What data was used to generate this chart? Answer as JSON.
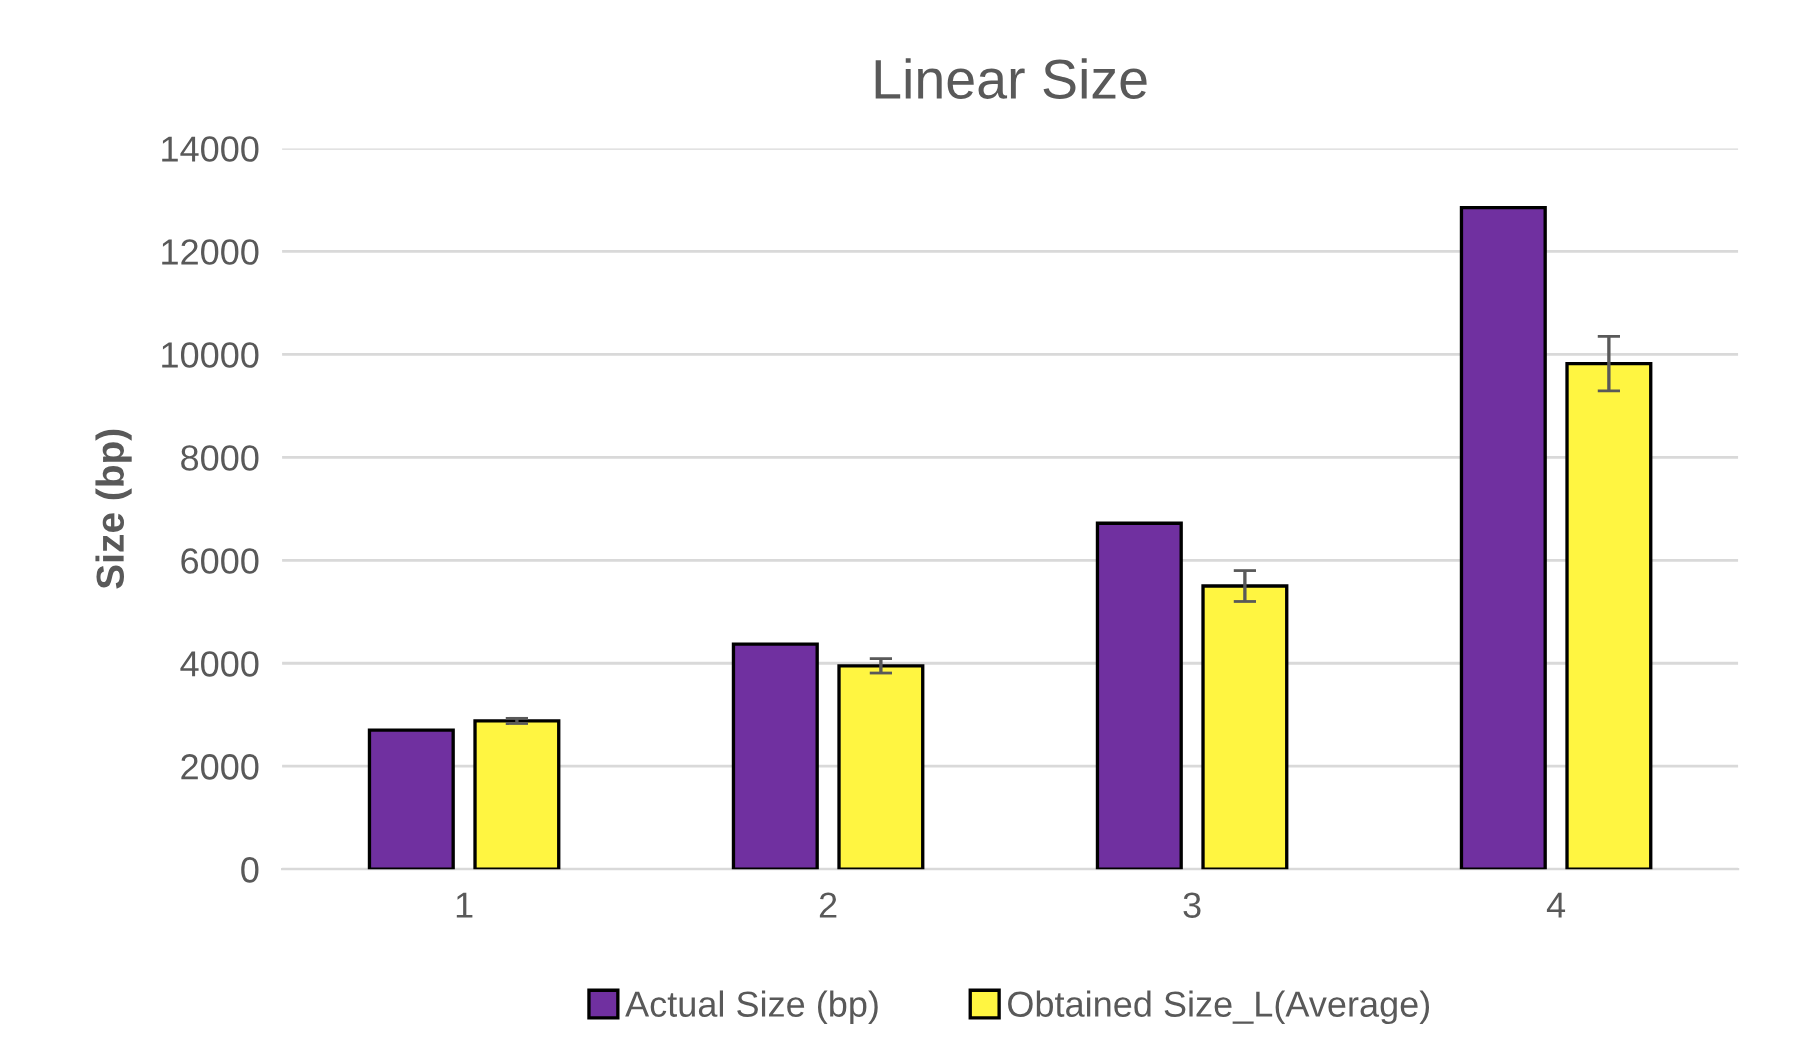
{
  "chart_data": {
    "type": "bar",
    "title": "Linear Size",
    "ylabel": "Size (bp)",
    "categories": [
      "1",
      "2",
      "3",
      "4"
    ],
    "series": [
      {
        "name": "Actual Size (bp)",
        "color": "#7030a0",
        "values": [
          2700,
          4370,
          6720,
          12850
        ]
      },
      {
        "name": "Obtained Size_L(Average)",
        "color": "#fff541",
        "values": [
          2880,
          3950,
          5500,
          9820
        ],
        "errors": [
          50,
          140,
          300,
          530
        ]
      }
    ],
    "ylim": [
      0,
      14000
    ],
    "yticks": [
      0,
      2000,
      4000,
      6000,
      8000,
      10000,
      12000,
      14000
    ],
    "grid": "y",
    "legend": "bottom"
  }
}
